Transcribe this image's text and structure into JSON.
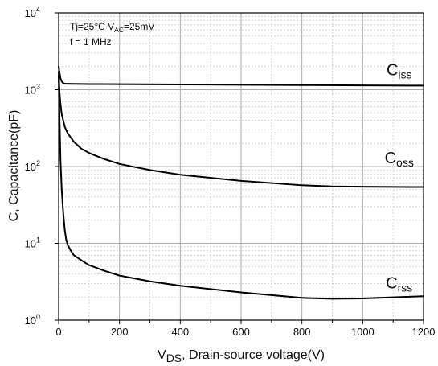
{
  "chart_data": {
    "type": "line",
    "xlabel": {
      "main": "V",
      "sub": "DS",
      "rest": ", Drain-source voltage(V)"
    },
    "ylabel": "C, Capacitance(pF)",
    "xlim": [
      0,
      1200
    ],
    "ylim": [
      1,
      10000
    ],
    "yscale": "log",
    "grid": true,
    "x_ticks": [
      "0",
      "200",
      "400",
      "600",
      "800",
      "1000",
      "1200"
    ],
    "y_ticks": [
      {
        "value": 1,
        "base": "10",
        "exp": "0"
      },
      {
        "value": 10,
        "base": "10",
        "exp": "1"
      },
      {
        "value": 100,
        "base": "10",
        "exp": "2"
      },
      {
        "value": 1000,
        "base": "10",
        "exp": "3"
      },
      {
        "value": 10000,
        "base": "10",
        "exp": "4"
      }
    ],
    "annotation": {
      "line1_a": "Tj=25°C  V",
      "line1_sub": "AC",
      "line1_b": "=25mV",
      "line2": "f = 1 MHz"
    },
    "series": [
      {
        "label_main": "C",
        "label_sub": "iss",
        "label_pos": [
          1120,
          1550
        ],
        "x": [
          0,
          3,
          6,
          10,
          15,
          20,
          30,
          50,
          100,
          200,
          400,
          600,
          800,
          1000,
          1200
        ],
        "y": [
          2000,
          1650,
          1400,
          1280,
          1220,
          1200,
          1195,
          1190,
          1185,
          1180,
          1170,
          1160,
          1150,
          1140,
          1130
        ]
      },
      {
        "label_main": "C",
        "label_sub": "oss",
        "label_pos": [
          1120,
          110
        ],
        "x": [
          0,
          3,
          6,
          10,
          20,
          30,
          50,
          75,
          100,
          150,
          200,
          300,
          400,
          600,
          800,
          900,
          1000,
          1200
        ],
        "y": [
          1700,
          900,
          650,
          480,
          330,
          270,
          210,
          170,
          150,
          125,
          108,
          90,
          78,
          65,
          57,
          55,
          54.5,
          54
        ]
      },
      {
        "label_main": "C",
        "label_sub": "rss",
        "label_pos": [
          1120,
          2.6
        ],
        "x": [
          0,
          3,
          6,
          10,
          15,
          20,
          25,
          30,
          40,
          50,
          75,
          100,
          150,
          200,
          300,
          400,
          600,
          800,
          900,
          1000,
          1200
        ],
        "y": [
          1500,
          400,
          120,
          50,
          25,
          15,
          11,
          9.5,
          8,
          7,
          6,
          5.2,
          4.4,
          3.8,
          3.2,
          2.8,
          2.3,
          1.95,
          1.9,
          1.92,
          2.05
        ]
      }
    ]
  }
}
